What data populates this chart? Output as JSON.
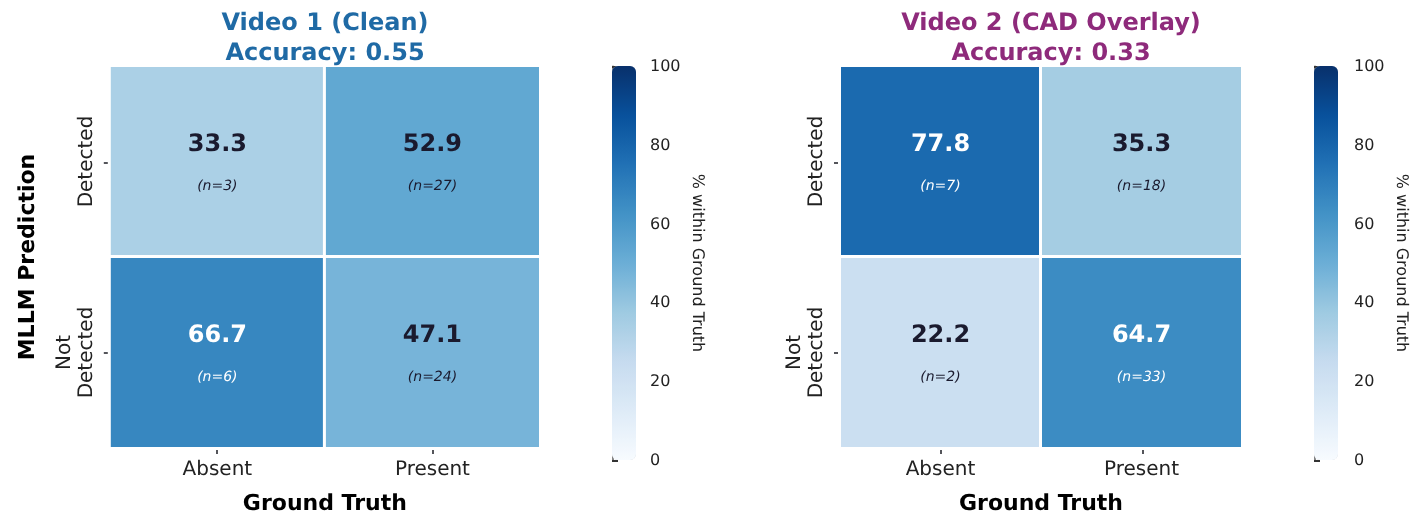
{
  "chart_data": [
    {
      "type": "heatmap",
      "title": "Video 1 (Clean)",
      "subtitle": "Accuracy: 0.55",
      "xlabel": "Ground Truth",
      "ylabel": "MLLM Prediction",
      "clabel": "% within Ground Truth",
      "categories": [
        "Absent",
        "Present"
      ],
      "y_categories": [
        "Detected",
        "Not\nDetected"
      ],
      "cells": [
        [
          33.3,
          52.9
        ],
        [
          66.7,
          47.1
        ]
      ],
      "cell_labels": [
        [
          "33.3\n(n=3)",
          "52.9\n(n=27)"
        ],
        [
          "66.7\n(n=6)",
          "47.1\n(n=24)"
        ]
      ],
      "clim": [
        0,
        100
      ],
      "cticks": [
        0,
        20,
        40,
        60,
        80,
        100
      ]
    },
    {
      "type": "heatmap",
      "title": "Video 2 (CAD Overlay)",
      "subtitle": "Accuracy: 0.33",
      "xlabel": "Ground Truth",
      "clabel": "% within Ground Truth",
      "categories": [
        "Absent",
        "Present"
      ],
      "y_categories": [
        "Detected",
        "Not\nDetected"
      ],
      "cells": [
        [
          77.8,
          35.3
        ],
        [
          22.2,
          64.7
        ]
      ],
      "cell_labels": [
        [
          "77.8\n(n=7)",
          "35.3\n(n=18)"
        ],
        [
          "22.2\n(n=2)",
          "64.7\n(n=33)"
        ]
      ],
      "clim": [
        0,
        100
      ],
      "cticks": [
        0,
        20,
        40,
        60,
        80,
        100
      ]
    }
  ]
}
